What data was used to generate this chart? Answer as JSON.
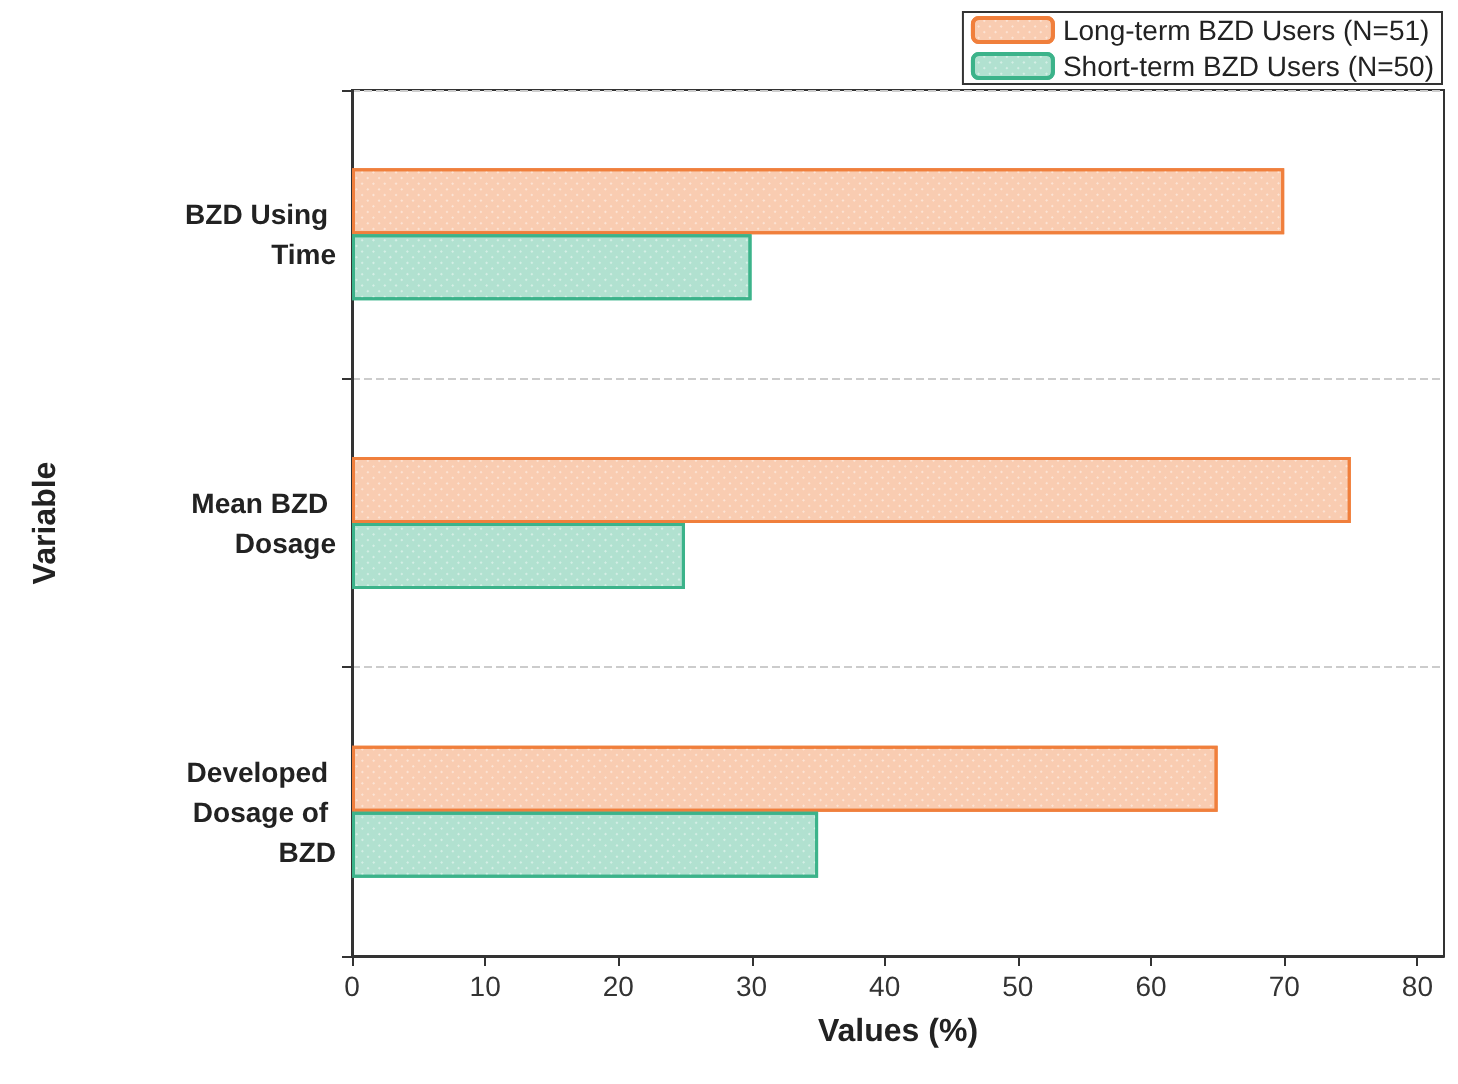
{
  "chart_data": {
    "type": "bar",
    "orientation": "horizontal",
    "xlabel": "Values (%)",
    "ylabel": "Variable",
    "categories": [
      "BZD Using Time",
      "Mean BZD Dosage",
      "Developed Dosage of BZD"
    ],
    "series": [
      {
        "name": "Long-term BZD Users (N=51)",
        "color": "#f07f3c",
        "values": [
          70,
          75,
          65
        ]
      },
      {
        "name": "Short-term BZD Users (N=50)",
        "color": "#3cb38a",
        "values": [
          30,
          25,
          35
        ]
      }
    ],
    "xlim": [
      0,
      82
    ],
    "xticks": [
      0,
      10,
      20,
      30,
      40,
      50,
      60,
      70,
      80
    ],
    "grid": "y",
    "legend": "top right"
  }
}
